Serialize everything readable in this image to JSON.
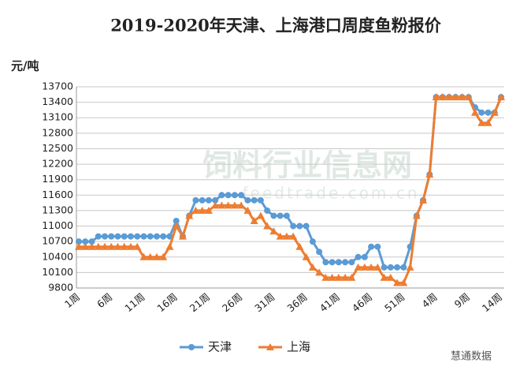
{
  "chart_data": {
    "type": "line",
    "title": "2019-2020年天津、上海港口周度鱼粉报价",
    "y_label": "元/吨",
    "watermark": [
      "饲料行业信息网",
      "feedtrade.com.cn",
      "慧通数据"
    ],
    "categories": [
      "1周",
      null,
      null,
      null,
      null,
      "6周",
      null,
      null,
      null,
      null,
      "11周",
      null,
      null,
      null,
      null,
      "16周",
      null,
      null,
      null,
      null,
      "21周",
      null,
      null,
      null,
      null,
      "26周",
      null,
      null,
      null,
      null,
      "31周",
      null,
      null,
      null,
      null,
      "36周",
      null,
      null,
      null,
      null,
      "41周",
      null,
      null,
      null,
      null,
      "46周",
      null,
      null,
      null,
      null,
      "51周",
      null,
      null,
      null,
      null,
      "4周",
      null,
      null,
      null,
      null,
      "9周",
      null,
      null,
      null,
      null,
      "14周"
    ],
    "series": [
      {
        "name": "天津",
        "color": "#5b9bd5",
        "marker": "circle",
        "values": [
          10700,
          10700,
          10700,
          10800,
          10800,
          10800,
          10800,
          10800,
          10800,
          10800,
          10800,
          10800,
          10800,
          10800,
          10800,
          11100,
          10800,
          11200,
          11500,
          11500,
          11500,
          11500,
          11600,
          11600,
          11600,
          11600,
          11500,
          11500,
          11500,
          11300,
          11200,
          11200,
          11200,
          11000,
          11000,
          11000,
          10700,
          10500,
          10300,
          10300,
          10300,
          10300,
          10300,
          10400,
          10400,
          10600,
          10600,
          10200,
          10200,
          10200,
          10200,
          10600,
          11200,
          11500,
          12000,
          13500,
          13500,
          13500,
          13500,
          13500,
          13500,
          13300,
          13200,
          13200,
          13200,
          13500
        ]
      },
      {
        "name": "上海",
        "color": "#ed7d31",
        "marker": "triangle",
        "values": [
          10600,
          10600,
          10600,
          10600,
          10600,
          10600,
          10600,
          10600,
          10600,
          10600,
          10400,
          10400,
          10400,
          10400,
          10600,
          11000,
          10800,
          11200,
          11300,
          11300,
          11300,
          11400,
          11400,
          11400,
          11400,
          11400,
          11300,
          11100,
          11200,
          11000,
          10900,
          10800,
          10800,
          10800,
          10600,
          10400,
          10200,
          10100,
          10000,
          10000,
          10000,
          10000,
          10000,
          10200,
          10200,
          10200,
          10200,
          10000,
          10000,
          9900,
          9900,
          10200,
          11200,
          11500,
          12000,
          13500,
          13500,
          13500,
          13500,
          13500,
          13500,
          13200,
          13000,
          13000,
          13200,
          13500
        ]
      }
    ],
    "ylim": [
      9800,
      13700
    ],
    "yticks": [
      9800,
      10100,
      10400,
      10700,
      11000,
      11300,
      11600,
      11900,
      12200,
      12500,
      12800,
      13100,
      13400,
      13700
    ],
    "grid": true,
    "legend": "bottom"
  }
}
